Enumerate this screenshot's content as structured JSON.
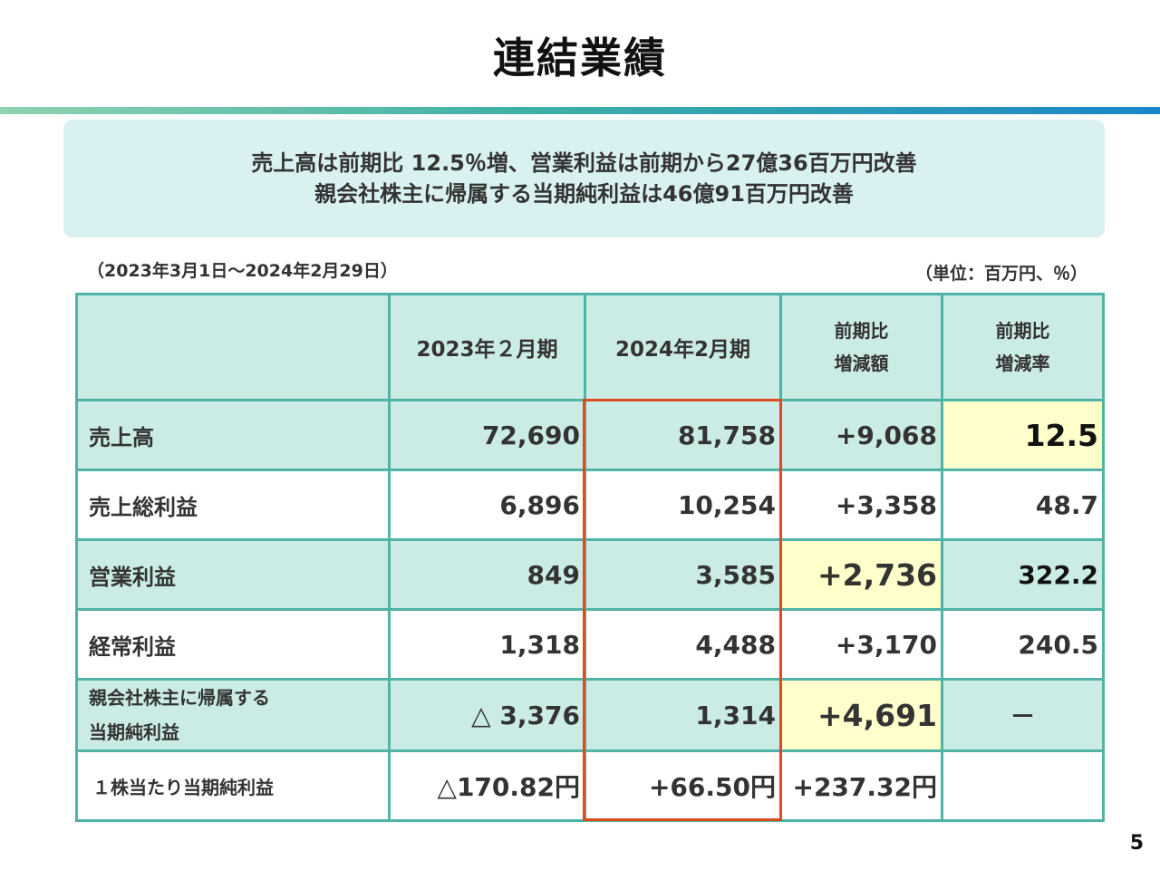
{
  "title": "連結業績",
  "summary": {
    "line1": "売上高は前期比 12.5％増、営業利益は前期から27億36百万円改善",
    "line2": "親会社株主に帰属する当期純利益は46億91百万円改善"
  },
  "period": "（2023年3月1日～2024年2月29日）",
  "unit": "（単位：百万円、％）",
  "table": {
    "headers": {
      "fy2023": "2023年２月期",
      "fy2024": "2024年2月期",
      "change_amount_1": "前期比",
      "change_amount_2": "増減額",
      "change_rate_1": "前期比",
      "change_rate_2": "増減率"
    },
    "rows": [
      {
        "label": "売上高",
        "fy2023": "72,690",
        "fy2024": "81,758",
        "change": "+9,068",
        "rate": "12.5"
      },
      {
        "label": "売上総利益",
        "fy2023": "6,896",
        "fy2024": "10,254",
        "change": "+3,358",
        "rate": "48.7"
      },
      {
        "label": "営業利益",
        "fy2023": "849",
        "fy2024": "3,585",
        "change": "+2,736",
        "rate": "322.2"
      },
      {
        "label": "経常利益",
        "fy2023": "1,318",
        "fy2024": "4,488",
        "change": "+3,170",
        "rate": "240.5"
      },
      {
        "label1": "親会社株主に帰属する",
        "label2": "当期純利益",
        "fy2023": "△ 3,376",
        "fy2024": "1,314",
        "change": "+4,691",
        "rate": "－"
      },
      {
        "label": "１株当たり当期純利益",
        "fy2023": "△170.82円",
        "fy2024": "+66.50円",
        "change": "+237.32円",
        "rate": ""
      }
    ]
  },
  "colors": {
    "teal_row": "#cbece5",
    "summary_bg": "#d9f2f1",
    "border": "#4fb3a6",
    "highlight": "#ffffcc",
    "red_box": "#e04a1f"
  },
  "page_number": "5"
}
